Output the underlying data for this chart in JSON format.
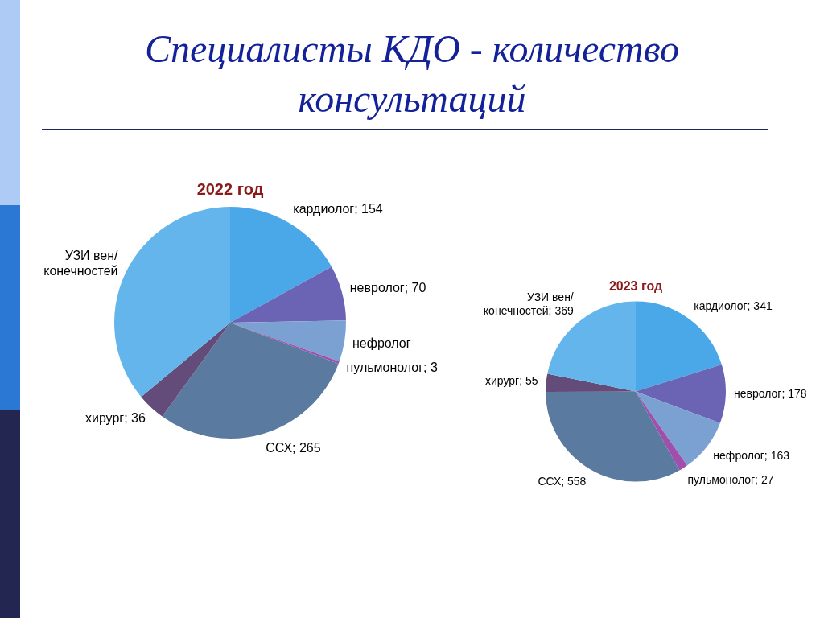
{
  "chart_data": [
    {
      "type": "other",
      "title": "Специалисты КДО - количество консультаций"
    },
    {
      "type": "pie",
      "title": "2022 год",
      "categories": [
        "кардиолог",
        "невролог",
        "нефролог",
        "пульмонолог",
        "ССХ",
        "хирург",
        "УЗИ вен/конечностей"
      ],
      "values": [
        154,
        70,
        52,
        3,
        265,
        36,
        327
      ],
      "value_labels": [
        "154",
        "70",
        null,
        "3",
        "265",
        "36",
        null
      ],
      "colors": [
        "#4aa8e8",
        "#6b63b3",
        "#7aa1d2",
        "#a050aa",
        "#5a7aa0",
        "#634c7a",
        "#64b5ec"
      ]
    },
    {
      "type": "pie",
      "title": "2023 год",
      "categories": [
        "кардиолог",
        "невролог",
        "нефролог",
        "пульмонолог",
        "ССХ",
        "хирург",
        "УЗИ вен/конечностей"
      ],
      "values": [
        341,
        178,
        163,
        27,
        558,
        55,
        369
      ],
      "value_labels": [
        "341",
        "178",
        "163",
        "27",
        "558",
        "55",
        "369"
      ],
      "colors": [
        "#4aa8e8",
        "#6b63b3",
        "#7aa1d2",
        "#a050aa",
        "#5a7aa0",
        "#634c7a",
        "#64b5ec"
      ]
    }
  ]
}
